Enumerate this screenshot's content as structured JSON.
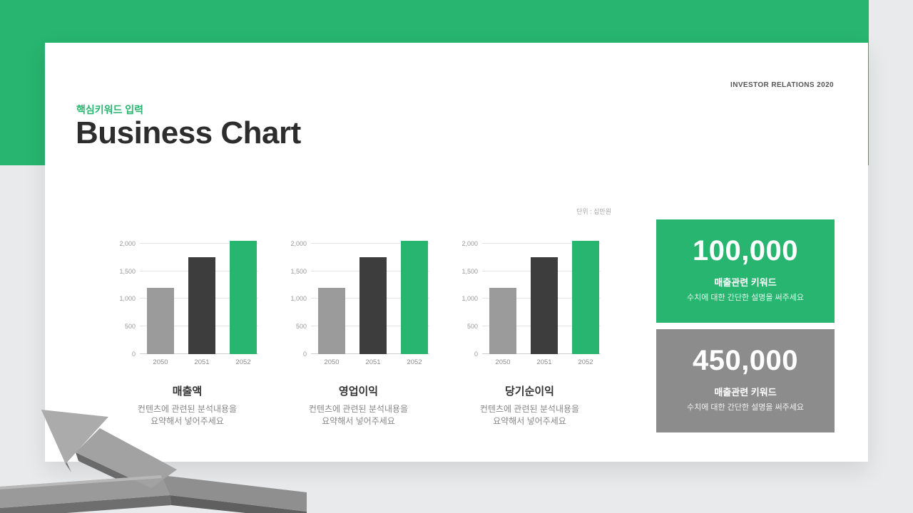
{
  "page": {
    "bg_color": "#e9eaec",
    "accent_green": "#27b56f"
  },
  "slide": {
    "header_right": "INVESTOR RELATIONS 2020",
    "eyebrow": "핵심키워드 입력",
    "title": "Business Chart",
    "unit_note": "단위 : 십만원"
  },
  "axis": {
    "ticks": [
      "2,000",
      "1,500",
      "1,000",
      "500",
      "0"
    ]
  },
  "chart_data": [
    {
      "type": "bar",
      "title": "매출액",
      "desc": [
        "컨텐츠에 관련된 분석내용을",
        "요약해서 넣어주세요"
      ],
      "categories": [
        "2050",
        "2051",
        "2052"
      ],
      "values": [
        1200,
        1750,
        2050
      ],
      "ylim": [
        0,
        2000
      ],
      "ytick_step": 500,
      "unit": "십만원",
      "grid": true,
      "legend": false
    },
    {
      "type": "bar",
      "title": "영업이익",
      "desc": [
        "컨텐츠에 관련된 분석내용을",
        "요약해서 넣어주세요"
      ],
      "categories": [
        "2050",
        "2051",
        "2052"
      ],
      "values": [
        1200,
        1750,
        2050
      ],
      "ylim": [
        0,
        2000
      ],
      "ytick_step": 500,
      "unit": "십만원",
      "grid": true,
      "legend": false
    },
    {
      "type": "bar",
      "title": "당기순이익",
      "desc": [
        "컨텐츠에 관련된 분석내용을",
        "요약해서 넣어주세요"
      ],
      "categories": [
        "2050",
        "2051",
        "2052"
      ],
      "values": [
        1200,
        1750,
        2050
      ],
      "ylim": [
        0,
        2000
      ],
      "ytick_step": 500,
      "unit": "십만원",
      "grid": true,
      "legend": false
    }
  ],
  "colors": {
    "bar_colors": [
      "#9b9b9b",
      "#3d3d3d",
      "#27b56f"
    ],
    "stat_green": "#27b56f",
    "stat_gray": "#8c8c8c"
  },
  "stat_cards": [
    {
      "value": "100,000",
      "keyword": "매출관련 키워드",
      "desc": "수치에 대한 간단한 설명을 써주세요"
    },
    {
      "value": "450,000",
      "keyword": "매출관련 키워드",
      "desc": "수치에 대한 간단한 설명을 써주세요"
    }
  ]
}
